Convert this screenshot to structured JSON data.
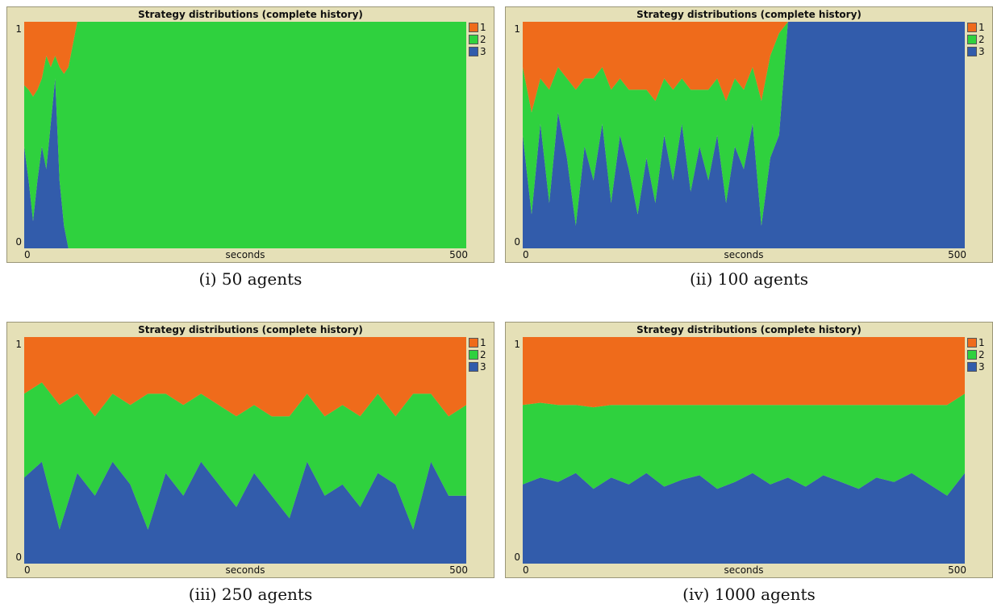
{
  "colors": {
    "s1": "#ef6b1b",
    "s2": "#2fd13e",
    "s3": "#325cab",
    "frame": "#e5e0b7"
  },
  "chart_data": [
    {
      "type": "area",
      "stacked": true,
      "title": "Strategy distributions (complete history)",
      "xlabel": "seconds",
      "xlim": [
        0,
        500
      ],
      "ylim": [
        0,
        1
      ],
      "xticks": [
        "0",
        "500"
      ],
      "yticks": [
        "0",
        "1"
      ],
      "legend": [
        "1",
        "2",
        "3"
      ],
      "legend_position": "right",
      "caption": "(i) 50 agents",
      "x": [
        0,
        5,
        10,
        15,
        20,
        25,
        30,
        35,
        40,
        45,
        50,
        55,
        60,
        500
      ],
      "series": [
        {
          "name": "3",
          "values": [
            0.45,
            0.3,
            0.12,
            0.3,
            0.45,
            0.35,
            0.55,
            0.75,
            0.3,
            0.1,
            0.0,
            0.0,
            0.0,
            0.0
          ]
        },
        {
          "name": "2",
          "values": [
            0.27,
            0.4,
            0.55,
            0.4,
            0.3,
            0.5,
            0.25,
            0.1,
            0.5,
            0.67,
            0.8,
            0.9,
            1.0,
            1.0
          ]
        },
        {
          "name": "1",
          "values": [
            0.28,
            0.3,
            0.33,
            0.3,
            0.25,
            0.15,
            0.2,
            0.15,
            0.2,
            0.23,
            0.2,
            0.1,
            0.0,
            0.0
          ]
        }
      ]
    },
    {
      "type": "area",
      "stacked": true,
      "title": "Strategy distributions (complete history)",
      "xlabel": "seconds",
      "xlim": [
        0,
        500
      ],
      "ylim": [
        0,
        1
      ],
      "xticks": [
        "0",
        "500"
      ],
      "yticks": [
        "0",
        "1"
      ],
      "legend": [
        "1",
        "2",
        "3"
      ],
      "legend_position": "right",
      "caption": "(ii) 100 agents",
      "x": [
        0,
        10,
        20,
        30,
        40,
        50,
        60,
        70,
        80,
        90,
        100,
        110,
        120,
        130,
        140,
        150,
        160,
        170,
        180,
        190,
        200,
        210,
        220,
        230,
        240,
        250,
        260,
        270,
        280,
        290,
        300,
        310,
        500
      ],
      "series": [
        {
          "name": "3",
          "values": [
            0.5,
            0.15,
            0.55,
            0.2,
            0.6,
            0.4,
            0.1,
            0.45,
            0.3,
            0.55,
            0.2,
            0.5,
            0.35,
            0.15,
            0.4,
            0.2,
            0.5,
            0.3,
            0.55,
            0.25,
            0.45,
            0.3,
            0.5,
            0.2,
            0.45,
            0.35,
            0.55,
            0.1,
            0.4,
            0.5,
            1.0,
            1.0,
            1.0
          ]
        },
        {
          "name": "2",
          "values": [
            0.3,
            0.45,
            0.2,
            0.5,
            0.2,
            0.35,
            0.6,
            0.3,
            0.45,
            0.25,
            0.5,
            0.25,
            0.35,
            0.55,
            0.3,
            0.45,
            0.25,
            0.4,
            0.2,
            0.45,
            0.25,
            0.4,
            0.25,
            0.45,
            0.3,
            0.35,
            0.25,
            0.55,
            0.45,
            0.45,
            0.0,
            0.0,
            0.0
          ]
        },
        {
          "name": "1",
          "values": [
            0.2,
            0.4,
            0.25,
            0.3,
            0.2,
            0.25,
            0.3,
            0.25,
            0.25,
            0.2,
            0.3,
            0.25,
            0.3,
            0.3,
            0.3,
            0.35,
            0.25,
            0.3,
            0.25,
            0.3,
            0.3,
            0.3,
            0.25,
            0.35,
            0.25,
            0.3,
            0.2,
            0.35,
            0.15,
            0.05,
            0.0,
            0.0,
            0.0
          ]
        }
      ]
    },
    {
      "type": "area",
      "stacked": true,
      "title": "Strategy distributions (complete history)",
      "xlabel": "seconds",
      "xlim": [
        0,
        500
      ],
      "ylim": [
        0,
        1
      ],
      "xticks": [
        "0",
        "500"
      ],
      "yticks": [
        "0",
        "1"
      ],
      "legend": [
        "1",
        "2",
        "3"
      ],
      "legend_position": "right",
      "caption": "(iii) 250 agents",
      "x": [
        0,
        20,
        40,
        60,
        80,
        100,
        120,
        140,
        160,
        180,
        200,
        220,
        240,
        260,
        280,
        300,
        320,
        340,
        360,
        380,
        400,
        420,
        440,
        460,
        480,
        500
      ],
      "series": [
        {
          "name": "3",
          "values": [
            0.38,
            0.45,
            0.15,
            0.4,
            0.3,
            0.45,
            0.35,
            0.15,
            0.4,
            0.3,
            0.45,
            0.35,
            0.25,
            0.4,
            0.3,
            0.2,
            0.45,
            0.3,
            0.35,
            0.25,
            0.4,
            0.35,
            0.15,
            0.45,
            0.3,
            0.3
          ]
        },
        {
          "name": "2",
          "values": [
            0.37,
            0.35,
            0.55,
            0.35,
            0.35,
            0.3,
            0.35,
            0.6,
            0.35,
            0.4,
            0.3,
            0.35,
            0.4,
            0.3,
            0.35,
            0.45,
            0.3,
            0.35,
            0.35,
            0.4,
            0.35,
            0.3,
            0.6,
            0.3,
            0.35,
            0.4
          ]
        },
        {
          "name": "1",
          "values": [
            0.25,
            0.2,
            0.3,
            0.25,
            0.35,
            0.25,
            0.3,
            0.25,
            0.25,
            0.3,
            0.25,
            0.3,
            0.35,
            0.3,
            0.35,
            0.35,
            0.25,
            0.35,
            0.3,
            0.35,
            0.25,
            0.35,
            0.25,
            0.25,
            0.35,
            0.3
          ]
        }
      ]
    },
    {
      "type": "area",
      "stacked": true,
      "title": "Strategy distributions (complete history)",
      "xlabel": "seconds",
      "xlim": [
        0,
        500
      ],
      "ylim": [
        0,
        1
      ],
      "xticks": [
        "0",
        "500"
      ],
      "yticks": [
        "0",
        "1"
      ],
      "legend": [
        "1",
        "2",
        "3"
      ],
      "legend_position": "right",
      "caption": "(iv) 1000 agents",
      "x": [
        0,
        20,
        40,
        60,
        80,
        100,
        120,
        140,
        160,
        180,
        200,
        220,
        240,
        260,
        280,
        300,
        320,
        340,
        360,
        380,
        400,
        420,
        440,
        460,
        480,
        500
      ],
      "series": [
        {
          "name": "3",
          "values": [
            0.35,
            0.38,
            0.36,
            0.4,
            0.33,
            0.38,
            0.35,
            0.4,
            0.34,
            0.37,
            0.39,
            0.33,
            0.36,
            0.4,
            0.35,
            0.38,
            0.34,
            0.39,
            0.36,
            0.33,
            0.38,
            0.36,
            0.4,
            0.35,
            0.3,
            0.4
          ]
        },
        {
          "name": "2",
          "values": [
            0.35,
            0.33,
            0.34,
            0.3,
            0.36,
            0.32,
            0.35,
            0.3,
            0.36,
            0.33,
            0.31,
            0.37,
            0.34,
            0.3,
            0.35,
            0.32,
            0.36,
            0.31,
            0.34,
            0.37,
            0.32,
            0.34,
            0.3,
            0.35,
            0.4,
            0.35
          ]
        },
        {
          "name": "1",
          "values": [
            0.3,
            0.29,
            0.3,
            0.3,
            0.31,
            0.3,
            0.3,
            0.3,
            0.3,
            0.3,
            0.3,
            0.3,
            0.3,
            0.3,
            0.3,
            0.3,
            0.3,
            0.3,
            0.3,
            0.3,
            0.3,
            0.3,
            0.3,
            0.3,
            0.3,
            0.25
          ]
        }
      ]
    }
  ]
}
